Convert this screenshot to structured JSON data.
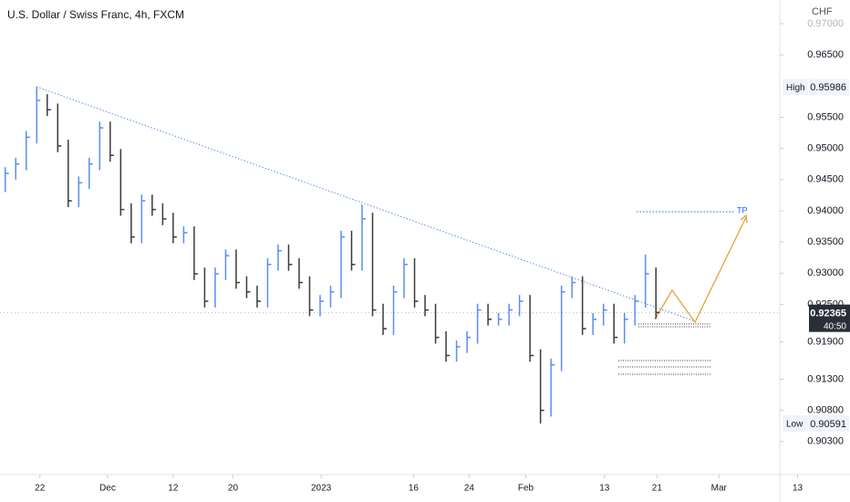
{
  "chart_data": {
    "type": "ohlc",
    "title": "U.S. Dollar / Swiss Franc, 4h, FXCM",
    "currency": "CHF",
    "up_color": "#5b8def",
    "down_color": "#3a3a3a",
    "high": [
      0.947,
      0.9485,
      0.9528,
      0.9599,
      0.9587,
      0.9572,
      0.9514,
      0.9455,
      0.9485,
      0.9543,
      0.9543,
      0.9499,
      0.9412,
      0.9426,
      0.9426,
      0.9412,
      0.9397,
      0.9375,
      0.9375,
      0.9309,
      0.9309,
      0.9338,
      0.9338,
      0.9295,
      0.928,
      0.9324,
      0.9346,
      0.9346,
      0.9324,
      0.9295,
      0.9265,
      0.928,
      0.9368,
      0.9368,
      0.941,
      0.9397,
      0.9251,
      0.928,
      0.9324,
      0.9324,
      0.9265,
      0.9251,
      0.9207,
      0.9192,
      0.9207,
      0.9251,
      0.9251,
      0.9236,
      0.9251,
      0.9265,
      0.9265,
      0.9178,
      0.9163,
      0.928,
      0.9295,
      0.9295,
      0.9236,
      0.9251,
      0.9251,
      0.9236,
      0.9265,
      0.933,
      0.9309
    ],
    "low": [
      0.943,
      0.945,
      0.9465,
      0.9508,
      0.9552,
      0.9494,
      0.9406,
      0.9406,
      0.9435,
      0.9465,
      0.9479,
      0.9392,
      0.9348,
      0.9348,
      0.9392,
      0.9377,
      0.9348,
      0.9348,
      0.9289,
      0.9245,
      0.9245,
      0.9289,
      0.9275,
      0.926,
      0.9245,
      0.9245,
      0.9304,
      0.9304,
      0.9275,
      0.9231,
      0.9231,
      0.9245,
      0.926,
      0.9304,
      0.9304,
      0.9231,
      0.9201,
      0.9201,
      0.926,
      0.9245,
      0.9231,
      0.9187,
      0.9158,
      0.9158,
      0.9172,
      0.9187,
      0.9216,
      0.9216,
      0.9216,
      0.9231,
      0.9158,
      0.9059,
      0.907,
      0.9143,
      0.926,
      0.9201,
      0.9201,
      0.9216,
      0.9187,
      0.9187,
      0.9216,
      0.9245,
      0.9227
    ],
    "close": [
      0.946,
      0.9475,
      0.9518,
      0.9577,
      0.9562,
      0.9504,
      0.9416,
      0.9445,
      0.9475,
      0.9533,
      0.9489,
      0.9402,
      0.9358,
      0.9416,
      0.9402,
      0.9387,
      0.9358,
      0.9365,
      0.9299,
      0.9255,
      0.9299,
      0.9328,
      0.9285,
      0.927,
      0.9255,
      0.9314,
      0.9336,
      0.9314,
      0.9285,
      0.9241,
      0.9255,
      0.927,
      0.9358,
      0.9314,
      0.9387,
      0.9241,
      0.9211,
      0.927,
      0.9314,
      0.9255,
      0.9241,
      0.9197,
      0.9168,
      0.9182,
      0.9197,
      0.9241,
      0.9226,
      0.9226,
      0.9241,
      0.9255,
      0.9168,
      0.908,
      0.9153,
      0.927,
      0.9285,
      0.9211,
      0.9226,
      0.9241,
      0.9197,
      0.9226,
      0.9255,
      0.9299,
      0.9237
    ],
    "xlim": [
      -0.5,
      73.8
    ],
    "ylim": [
      0.8977,
      0.9738
    ],
    "xticks": [
      {
        "value": 3.3,
        "label": "22"
      },
      {
        "value": 9.75,
        "label": "Dec"
      },
      {
        "value": 16.0,
        "label": "12"
      },
      {
        "value": 21.7,
        "label": "20"
      },
      {
        "value": 30.1,
        "label": "2023"
      },
      {
        "value": 38.9,
        "label": "16"
      },
      {
        "value": 44.2,
        "label": "24"
      },
      {
        "value": 49.6,
        "label": "Feb"
      },
      {
        "value": 57.1,
        "label": "13"
      },
      {
        "value": 62.1,
        "label": "21"
      },
      {
        "value": 68.0,
        "label": "Mar"
      },
      {
        "value": 75.5,
        "label": "13"
      }
    ],
    "yticks": [
      {
        "value": 0.97,
        "label": "0.97000"
      },
      {
        "value": 0.965,
        "label": "0.96500"
      },
      {
        "value": 0.955,
        "label": "0.95500"
      },
      {
        "value": 0.95,
        "label": "0.95000"
      },
      {
        "value": 0.945,
        "label": "0.94500"
      },
      {
        "value": 0.94,
        "label": "0.94000"
      },
      {
        "value": 0.935,
        "label": "0.93500"
      },
      {
        "value": 0.93,
        "label": "0.93000"
      },
      {
        "value": 0.925,
        "label": "0.92500"
      },
      {
        "value": 0.919,
        "label": "0.91900"
      },
      {
        "value": 0.913,
        "label": "0.91300"
      },
      {
        "value": 0.908,
        "label": "0.90800"
      },
      {
        "value": 0.903,
        "label": "0.90300"
      }
    ],
    "high_marker": {
      "label": "High",
      "value": 0.95986
    },
    "low_marker": {
      "label": "Low",
      "value": 0.90591
    },
    "last_price": {
      "value": 0.92365,
      "countdown": "40:50"
    },
    "annotation": "TP"
  }
}
